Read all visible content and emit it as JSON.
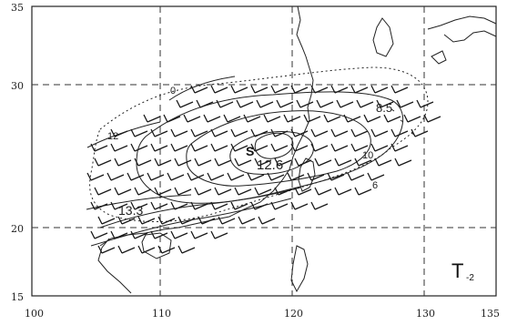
{
  "map": {
    "lon_range": [
      100,
      135
    ],
    "lat_range": [
      15,
      35
    ],
    "lon_ticks": [
      "100",
      "110",
      "120",
      "130",
      "135"
    ],
    "lat_ticks": [
      "15",
      "20",
      "30",
      "35"
    ],
    "grid": "dashed",
    "panel_label": "T",
    "panel_sublabel": "-2",
    "center_marker": "S",
    "contour_labels": [
      "0",
      "8.5",
      "10",
      "12",
      "12.6",
      "6",
      "13.3"
    ],
    "barb_color": "#1a1a1a"
  }
}
